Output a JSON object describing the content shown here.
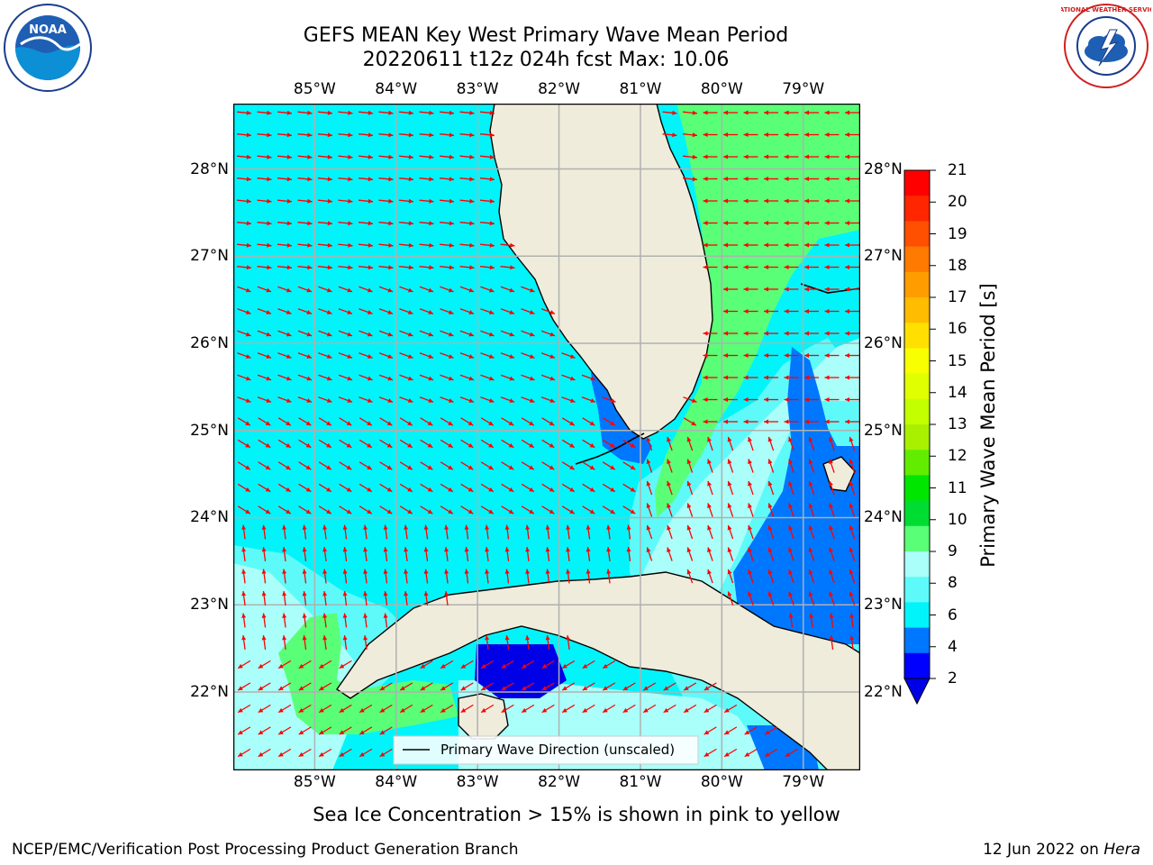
{
  "header": {
    "title_line1": "GEFS MEAN Key West Primary Wave Mean Period",
    "title_line2": "20220611 t12z 024h fcst   Max: 10.06"
  },
  "logos": {
    "left": {
      "name": "NOAA",
      "text": "NOAA",
      "ring_text": "NATIONAL OCEANIC AND ATMOSPHERIC ADMINISTRATION · U.S. DEPARTMENT OF COMMERCE"
    },
    "right": {
      "name": "National Weather Service",
      "ring_text": "NATIONAL WEATHER SERVICE"
    }
  },
  "map": {
    "lon_labels": [
      "85°W",
      "84°W",
      "83°W",
      "82°W",
      "81°W",
      "80°W",
      "79°W"
    ],
    "lat_labels": [
      "28°N",
      "27°N",
      "26°N",
      "25°N",
      "24°N",
      "23°N",
      "22°N"
    ],
    "lon_range": [
      -86.0,
      -78.3
    ],
    "lat_range": [
      21.1,
      28.75
    ],
    "grid": true,
    "arrow_color": "#ff0000",
    "land_color": "#efecdc",
    "legend": {
      "label": "Primary Wave Direction (unscaled)",
      "placement": "bottom-center"
    }
  },
  "colorbar": {
    "label": "Primary Wave Mean Period [s]",
    "ticks": [
      "21",
      "20",
      "19",
      "18",
      "17",
      "16",
      "15",
      "14",
      "13",
      "12",
      "11",
      "10",
      "9",
      "8",
      "6",
      "4",
      "2"
    ],
    "colors": [
      "#ff0000",
      "#ff2600",
      "#ff4f00",
      "#ff7a00",
      "#ff9c00",
      "#ffbc00",
      "#ffe000",
      "#f8ff00",
      "#e0ff00",
      "#c4ff00",
      "#a8f000",
      "#62ec00",
      "#00e600",
      "#00dc32",
      "#5aff78",
      "#aafffa",
      "#5efafa",
      "#00f4fa",
      "#0077ff",
      "#0000ff"
    ],
    "extend_min_color": "#0000e6"
  },
  "notes": {
    "sea_ice": "Sea Ice Concentration > 15% is shown in pink to yellow"
  },
  "footer": {
    "left": "NCEP/EMC/Verification Post Processing Product Generation Branch",
    "date": "12 Jun 2022 on ",
    "machine": "Hera"
  }
}
